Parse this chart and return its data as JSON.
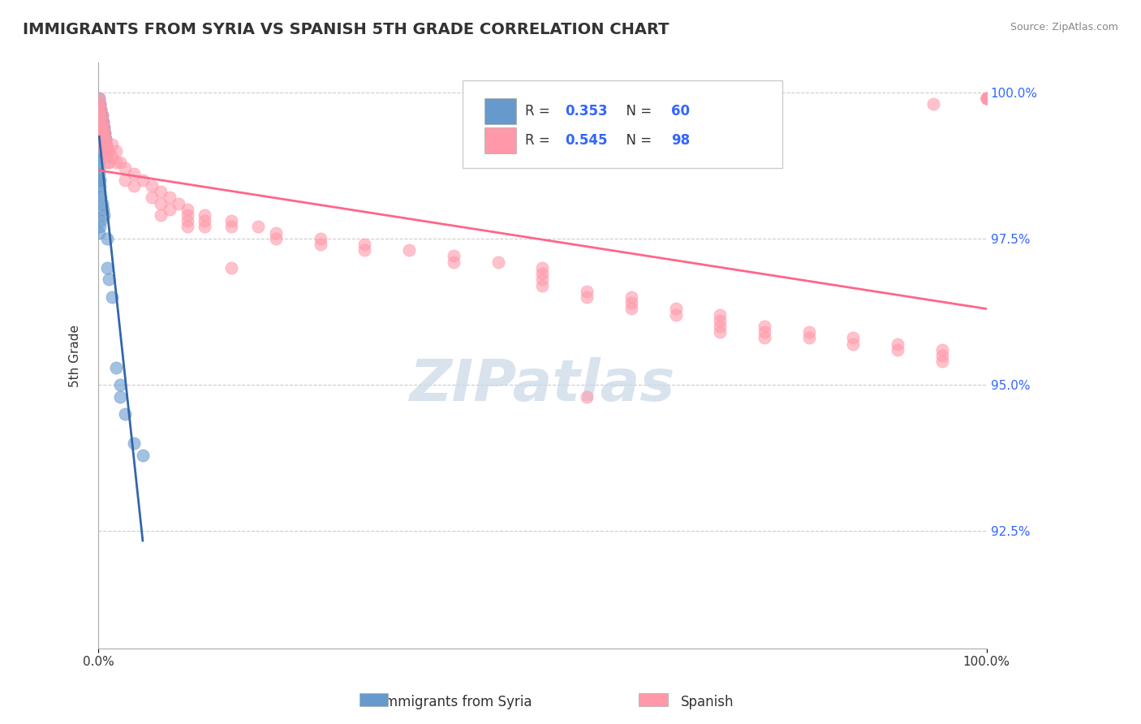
{
  "title": "IMMIGRANTS FROM SYRIA VS SPANISH 5TH GRADE CORRELATION CHART",
  "source_text": "Source: ZipAtlas.com",
  "xlabel": "",
  "ylabel": "5th Grade",
  "xlim": [
    0.0,
    1.0
  ],
  "ylim": [
    0.905,
    1.005
  ],
  "yticks": [
    0.925,
    0.95,
    0.975,
    1.0
  ],
  "ytick_labels": [
    "92.5%",
    "95.0%",
    "97.5%",
    "100.0%"
  ],
  "xticks": [
    0.0,
    1.0
  ],
  "xtick_labels": [
    "0.0%",
    "100.0%"
  ],
  "series": [
    {
      "name": "Immigrants from Syria",
      "color": "#6699CC",
      "R": 0.353,
      "N": 60,
      "x": [
        0.001,
        0.001,
        0.001,
        0.001,
        0.001,
        0.001,
        0.001,
        0.001,
        0.001,
        0.002,
        0.002,
        0.002,
        0.002,
        0.002,
        0.002,
        0.002,
        0.002,
        0.003,
        0.003,
        0.003,
        0.003,
        0.003,
        0.004,
        0.004,
        0.004,
        0.004,
        0.005,
        0.005,
        0.005,
        0.006,
        0.006,
        0.007,
        0.007,
        0.008,
        0.009,
        0.01,
        0.01,
        0.012,
        0.015,
        0.02,
        0.025,
        0.025,
        0.03,
        0.04,
        0.05,
        0.001,
        0.001,
        0.001,
        0.001,
        0.001,
        0.001,
        0.002,
        0.002,
        0.002,
        0.003,
        0.004,
        0.005,
        0.006,
        0.003,
        0.002,
        0.001
      ],
      "y": [
        0.999,
        0.998,
        0.997,
        0.996,
        0.995,
        0.994,
        0.993,
        0.992,
        0.991,
        0.998,
        0.997,
        0.996,
        0.994,
        0.993,
        0.992,
        0.991,
        0.99,
        0.997,
        0.996,
        0.995,
        0.994,
        0.993,
        0.996,
        0.995,
        0.994,
        0.993,
        0.995,
        0.994,
        0.993,
        0.994,
        0.993,
        0.993,
        0.992,
        0.992,
        0.991,
        0.975,
        0.97,
        0.968,
        0.965,
        0.953,
        0.95,
        0.948,
        0.945,
        0.94,
        0.938,
        0.99,
        0.989,
        0.988,
        0.987,
        0.986,
        0.985,
        0.985,
        0.984,
        0.983,
        0.982,
        0.981,
        0.98,
        0.979,
        0.978,
        0.977,
        0.976
      ]
    },
    {
      "name": "Spanish",
      "color": "#FF99AA",
      "R": 0.545,
      "N": 98,
      "x": [
        0.001,
        0.001,
        0.001,
        0.001,
        0.002,
        0.002,
        0.002,
        0.003,
        0.003,
        0.003,
        0.003,
        0.004,
        0.004,
        0.004,
        0.005,
        0.005,
        0.006,
        0.006,
        0.007,
        0.007,
        0.007,
        0.008,
        0.008,
        0.01,
        0.01,
        0.01,
        0.012,
        0.012,
        0.015,
        0.015,
        0.02,
        0.02,
        0.025,
        0.03,
        0.03,
        0.04,
        0.04,
        0.05,
        0.06,
        0.06,
        0.07,
        0.07,
        0.07,
        0.08,
        0.08,
        0.09,
        0.1,
        0.1,
        0.1,
        0.1,
        0.12,
        0.12,
        0.12,
        0.15,
        0.15,
        0.18,
        0.2,
        0.2,
        0.25,
        0.25,
        0.3,
        0.3,
        0.35,
        0.4,
        0.4,
        0.45,
        0.5,
        0.5,
        0.5,
        0.5,
        0.55,
        0.55,
        0.6,
        0.6,
        0.6,
        0.65,
        0.65,
        0.7,
        0.7,
        0.7,
        0.7,
        0.75,
        0.75,
        0.75,
        0.8,
        0.8,
        0.85,
        0.85,
        0.9,
        0.9,
        0.95,
        0.95,
        0.95,
        1.0,
        1.0,
        1.0,
        1.0,
        1.0,
        0.55,
        0.15,
        0.94
      ],
      "y": [
        0.999,
        0.998,
        0.997,
        0.996,
        0.998,
        0.996,
        0.994,
        0.997,
        0.995,
        0.993,
        0.991,
        0.996,
        0.994,
        0.992,
        0.995,
        0.993,
        0.994,
        0.992,
        0.993,
        0.991,
        0.99,
        0.992,
        0.991,
        0.99,
        0.989,
        0.988,
        0.99,
        0.988,
        0.991,
        0.989,
        0.99,
        0.988,
        0.988,
        0.987,
        0.985,
        0.986,
        0.984,
        0.985,
        0.984,
        0.982,
        0.983,
        0.981,
        0.979,
        0.982,
        0.98,
        0.981,
        0.98,
        0.979,
        0.978,
        0.977,
        0.979,
        0.978,
        0.977,
        0.978,
        0.977,
        0.977,
        0.976,
        0.975,
        0.975,
        0.974,
        0.974,
        0.973,
        0.973,
        0.972,
        0.971,
        0.971,
        0.97,
        0.969,
        0.968,
        0.967,
        0.966,
        0.965,
        0.965,
        0.964,
        0.963,
        0.963,
        0.962,
        0.962,
        0.961,
        0.96,
        0.959,
        0.96,
        0.959,
        0.958,
        0.959,
        0.958,
        0.958,
        0.957,
        0.957,
        0.956,
        0.956,
        0.955,
        0.954,
        0.999,
        0.999,
        0.999,
        0.999,
        0.999,
        0.948,
        0.97,
        0.998
      ]
    }
  ],
  "watermark": "ZIPatlas",
  "watermark_color": "#C8D8E8",
  "legend_R_color": "#3366FF",
  "legend_N_color": "#3366FF",
  "trendline_blue_color": "#3366AA",
  "trendline_pink_color": "#FF6688",
  "background_color": "#FFFFFF",
  "grid_color": "#CCCCCC",
  "ytick_right_color": "#3366FF"
}
